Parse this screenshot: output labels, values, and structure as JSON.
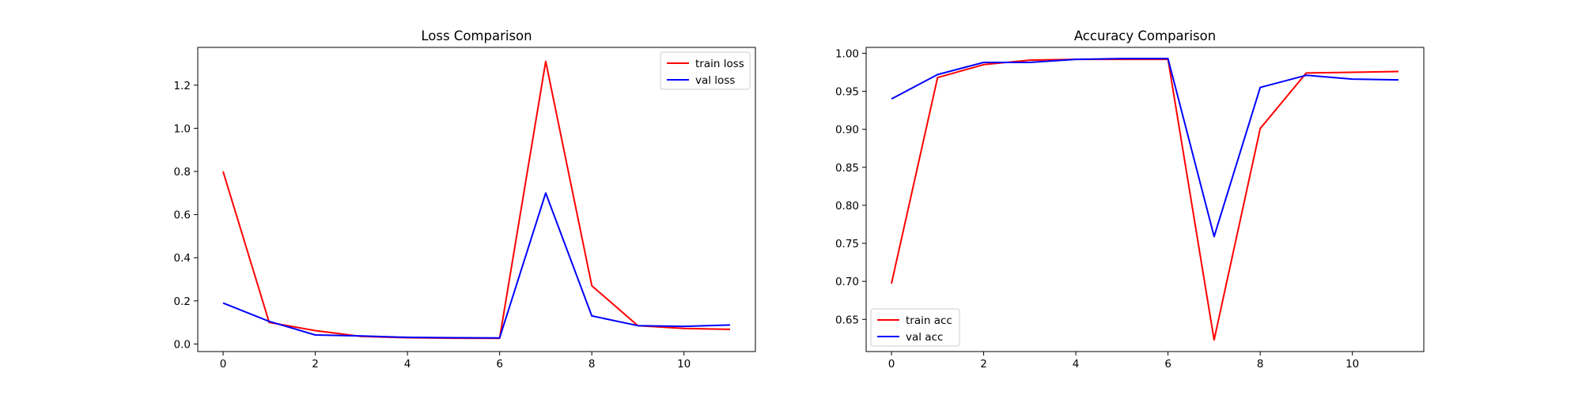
{
  "chart_data": [
    {
      "type": "line",
      "title": "Loss Comparison",
      "xlabel": "",
      "ylabel": "",
      "x": [
        0,
        1,
        2,
        3,
        4,
        5,
        6,
        7,
        8,
        9,
        10,
        11
      ],
      "xlim": [
        -0.55,
        11.55
      ],
      "ylim": [
        -0.035,
        1.375
      ],
      "xticks": [
        0,
        2,
        4,
        6,
        8,
        10
      ],
      "xtick_labels": [
        "0",
        "2",
        "4",
        "6",
        "8",
        "10"
      ],
      "yticks": [
        0.0,
        0.2,
        0.4,
        0.6,
        0.8,
        1.0,
        1.2
      ],
      "ytick_labels": [
        "0.0",
        "0.2",
        "0.4",
        "0.6",
        "0.8",
        "1.0",
        "1.2"
      ],
      "legend_position": "top-right",
      "grid": false,
      "series": [
        {
          "name": "train loss",
          "color": "#ff0000",
          "values": [
            0.8,
            0.1,
            0.062,
            0.035,
            0.029,
            0.027,
            0.026,
            1.31,
            0.27,
            0.085,
            0.072,
            0.068
          ]
        },
        {
          "name": "val loss",
          "color": "#0000ff",
          "values": [
            0.19,
            0.105,
            0.042,
            0.037,
            0.031,
            0.029,
            0.028,
            0.7,
            0.13,
            0.085,
            0.082,
            0.088
          ]
        }
      ]
    },
    {
      "type": "line",
      "title": "Accuracy Comparison",
      "xlabel": "",
      "ylabel": "",
      "x": [
        0,
        1,
        2,
        3,
        4,
        5,
        6,
        7,
        8,
        9,
        10,
        11
      ],
      "xlim": [
        -0.55,
        11.55
      ],
      "ylim": [
        0.6077,
        1.0077
      ],
      "xticks": [
        0,
        2,
        4,
        6,
        8,
        10
      ],
      "xtick_labels": [
        "0",
        "2",
        "4",
        "6",
        "8",
        "10"
      ],
      "yticks": [
        0.65,
        0.7,
        0.75,
        0.8,
        0.85,
        0.9,
        0.95,
        1.0
      ],
      "ytick_labels": [
        "0.65",
        "0.70",
        "0.75",
        "0.80",
        "0.85",
        "0.90",
        "0.95",
        "1.00"
      ],
      "legend_position": "bottom-left",
      "grid": false,
      "series": [
        {
          "name": "train acc",
          "color": "#ff0000",
          "values": [
            0.697,
            0.968,
            0.985,
            0.991,
            0.992,
            0.992,
            0.992,
            0.623,
            0.901,
            0.974,
            0.975,
            0.976
          ]
        },
        {
          "name": "val acc",
          "color": "#0000ff",
          "values": [
            0.94,
            0.972,
            0.988,
            0.988,
            0.992,
            0.993,
            0.993,
            0.759,
            0.955,
            0.971,
            0.966,
            0.965
          ]
        }
      ]
    }
  ]
}
